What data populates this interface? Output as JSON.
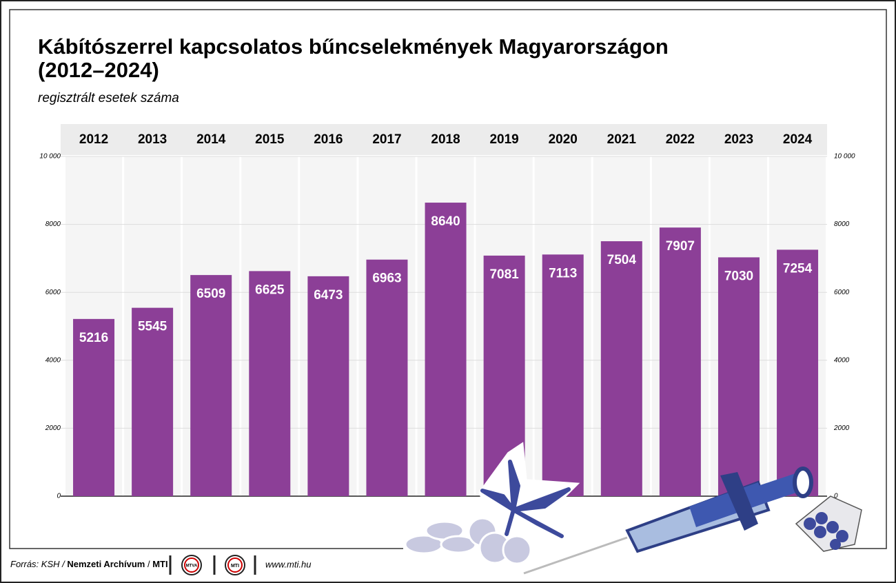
{
  "chart_data": {
    "type": "bar",
    "title": [
      "Kábítószerrel kapcsolatos bűncselekmények Magyarországon",
      "(2012–2024)"
    ],
    "subtitle": "regisztrált esetek száma",
    "categories": [
      "2012",
      "2013",
      "2014",
      "2015",
      "2016",
      "2017",
      "2018",
      "2019",
      "2020",
      "2021",
      "2022",
      "2023",
      "2024"
    ],
    "values": [
      5216,
      5545,
      6509,
      6625,
      6473,
      6963,
      8640,
      7081,
      7113,
      7504,
      7907,
      7030,
      7254
    ],
    "color": "#8c3f97",
    "ylim": [
      0,
      10000
    ],
    "yticks": [
      0,
      2000,
      4000,
      6000,
      8000,
      {
        "value": 10000,
        "label": "10 000"
      }
    ],
    "grid": true
  },
  "footer": {
    "source": [
      "Forrás: KSH /",
      "Nemzeti Archívum",
      "/",
      "MTI"
    ],
    "logos": [
      "MTVA",
      "MTI"
    ],
    "url": "www.mti.hu"
  }
}
